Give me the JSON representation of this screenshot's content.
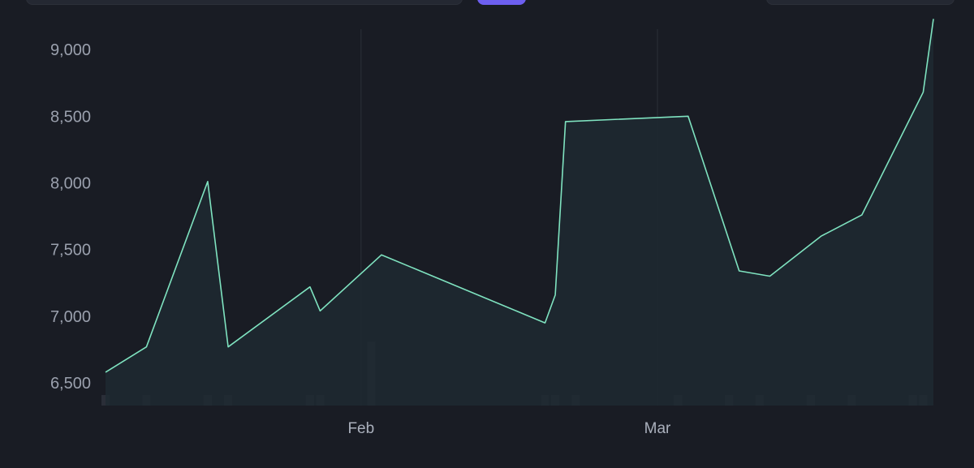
{
  "colors": {
    "background": "#191c24",
    "line": "#7fe3c0",
    "area_fill": "#1f2931",
    "volume_bar": "#2a2e38",
    "gridline": "#2b3039",
    "accent": "#6d5ff0"
  },
  "chart_data": {
    "type": "area",
    "title": "",
    "xlabel": "",
    "ylabel": "",
    "ylim": [
      6330,
      9250
    ],
    "y_ticks": [
      "6,500",
      "7,000",
      "7,500",
      "8,000",
      "8,500",
      "9,000"
    ],
    "y_tick_values": [
      6500,
      7000,
      7500,
      8000,
      8500,
      9000
    ],
    "x_ticks": [
      "Feb",
      "Mar"
    ],
    "x_tick_dates": [
      "2024-02-01",
      "2024-03-01"
    ],
    "x_range": [
      "2024-01-07",
      "2024-03-28"
    ],
    "grid": "vertical lines at month ticks",
    "series": [
      {
        "values": [
          {
            "x": "2024-01-07",
            "y": 6580
          },
          {
            "x": "2024-01-11",
            "y": 6770
          },
          {
            "x": "2024-01-17",
            "y": 8010
          },
          {
            "x": "2024-01-19",
            "y": 6770
          },
          {
            "x": "2024-01-27",
            "y": 7220
          },
          {
            "x": "2024-01-28",
            "y": 7040
          },
          {
            "x": "2024-02-03",
            "y": 7460
          },
          {
            "x": "2024-02-19",
            "y": 6950
          },
          {
            "x": "2024-02-20",
            "y": 7160
          },
          {
            "x": "2024-02-21",
            "y": 8460
          },
          {
            "x": "2024-03-04",
            "y": 8500
          },
          {
            "x": "2024-03-09",
            "y": 7340
          },
          {
            "x": "2024-03-12",
            "y": 7300
          },
          {
            "x": "2024-03-17",
            "y": 7600
          },
          {
            "x": "2024-03-21",
            "y": 7760
          },
          {
            "x": "2024-03-27",
            "y": 8680
          },
          {
            "x": "2024-03-28",
            "y": 9230
          }
        ]
      }
    ],
    "volume_bars": [
      {
        "x": "2024-01-07",
        "h": 0.21
      },
      {
        "x": "2024-01-11",
        "h": 0.21
      },
      {
        "x": "2024-01-17",
        "h": 0.21
      },
      {
        "x": "2024-01-19",
        "h": 0.21
      },
      {
        "x": "2024-01-27",
        "h": 0.21
      },
      {
        "x": "2024-01-28",
        "h": 0.21
      },
      {
        "x": "2024-02-02",
        "h": 1.27
      },
      {
        "x": "2024-02-19",
        "h": 0.21
      },
      {
        "x": "2024-02-20",
        "h": 0.21
      },
      {
        "x": "2024-02-22",
        "h": 0.21
      },
      {
        "x": "2024-03-03",
        "h": 0.21
      },
      {
        "x": "2024-03-08",
        "h": 0.21
      },
      {
        "x": "2024-03-11",
        "h": 0.21
      },
      {
        "x": "2024-03-16",
        "h": 0.21
      },
      {
        "x": "2024-03-20",
        "h": 0.21
      },
      {
        "x": "2024-03-26",
        "h": 0.21
      },
      {
        "x": "2024-03-27",
        "h": 0.21
      }
    ]
  }
}
